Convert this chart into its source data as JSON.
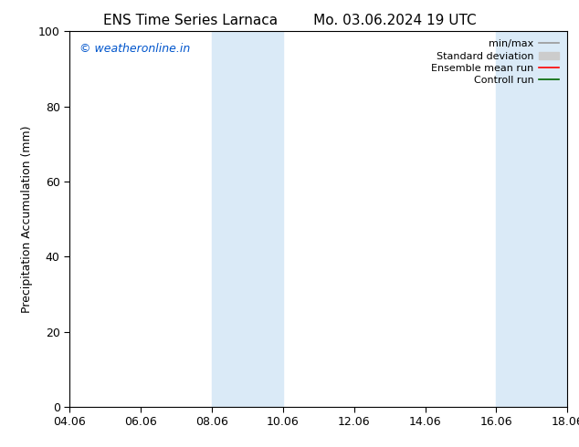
{
  "title_left": "ENS Time Series Larnaca",
  "title_right": "Mo. 03.06.2024 19 UTC",
  "ylabel": "Precipitation Accumulation (mm)",
  "xlabel": "",
  "ylim": [
    0,
    100
  ],
  "xtick_labels": [
    "04.06",
    "06.06",
    "08.06",
    "10.06",
    "12.06",
    "14.06",
    "16.06",
    "18.06"
  ],
  "xtick_positions": [
    0,
    2,
    4,
    6,
    8,
    10,
    12,
    14
  ],
  "ytick_positions": [
    0,
    20,
    40,
    60,
    80,
    100
  ],
  "shaded_bands": [
    {
      "x_start": 4,
      "x_end": 6
    },
    {
      "x_start": 12,
      "x_end": 14
    }
  ],
  "shaded_color": "#daeaf7",
  "bg_color": "#ffffff",
  "watermark_text": "© weatheronline.in",
  "watermark_color": "#0055cc",
  "legend_entries": [
    {
      "label": "min/max",
      "color": "#999999",
      "lw": 1.2
    },
    {
      "label": "Standard deviation",
      "color": "#cccccc",
      "lw": 6
    },
    {
      "label": "Ensemble mean run",
      "color": "#ff0000",
      "lw": 1.2
    },
    {
      "label": "Controll run",
      "color": "#006600",
      "lw": 1.2
    }
  ],
  "title_fontsize": 11,
  "axis_label_fontsize": 9,
  "tick_fontsize": 9,
  "legend_fontsize": 8,
  "watermark_fontsize": 9
}
